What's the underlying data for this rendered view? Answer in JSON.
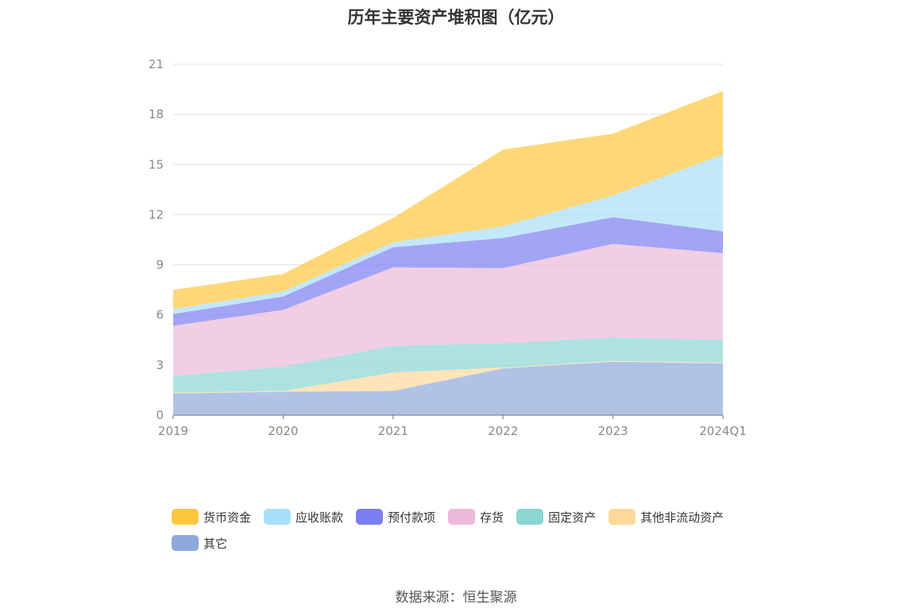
{
  "title": "历年主要资产堆积图（亿元）",
  "source": "数据来源：恒生聚源",
  "chart_data": {
    "type": "area",
    "stacked": true,
    "categories": [
      "2019",
      "2020",
      "2021",
      "2022",
      "2023",
      "2024Q1"
    ],
    "ylim": [
      0,
      21
    ],
    "yticks": [
      0,
      3,
      6,
      9,
      12,
      15,
      18,
      21
    ],
    "grid": true,
    "legend_position": "bottom",
    "series": [
      {
        "name": "其它",
        "color": "#8eaadb",
        "values": [
          1.3,
          1.4,
          1.45,
          2.8,
          3.2,
          3.1
        ]
      },
      {
        "name": "其他非流动资产",
        "color": "#fdd89a",
        "values": [
          0.05,
          0.05,
          1.1,
          0.05,
          0.05,
          0.05
        ]
      },
      {
        "name": "固定资产",
        "color": "#8ad6d3",
        "values": [
          1.0,
          1.45,
          1.6,
          1.45,
          1.4,
          1.35
        ]
      },
      {
        "name": "存货",
        "color": "#ebb9d9",
        "values": [
          3.0,
          3.4,
          4.7,
          4.5,
          5.6,
          5.2
        ]
      },
      {
        "name": "预付款项",
        "color": "#7b7ef2",
        "values": [
          0.7,
          0.8,
          1.2,
          1.8,
          1.6,
          1.3
        ]
      },
      {
        "name": "应收账款",
        "color": "#a9def8",
        "values": [
          0.3,
          0.3,
          0.3,
          0.7,
          1.3,
          4.6
        ]
      },
      {
        "name": "货币资金",
        "color": "#fdc73f",
        "values": [
          1.15,
          1.05,
          1.45,
          4.6,
          3.7,
          3.8
        ]
      }
    ],
    "legend_order": [
      "货币资金",
      "应收账款",
      "预付款项",
      "存货",
      "固定资产",
      "其他非流动资产",
      "其它"
    ]
  }
}
